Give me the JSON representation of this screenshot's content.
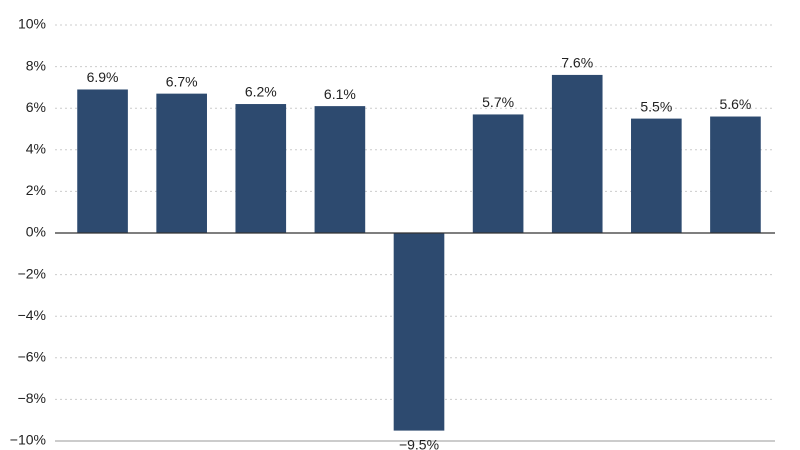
{
  "chart_data": {
    "type": "bar",
    "categories": [
      null,
      null,
      null,
      null,
      null,
      null,
      null,
      null,
      null
    ],
    "values": [
      6.9,
      6.7,
      6.2,
      6.1,
      -9.5,
      5.7,
      7.6,
      5.5,
      5.6
    ],
    "value_labels": [
      "6.9%",
      "6.7%",
      "6.2%",
      "6.1%",
      "−9.5%",
      "5.7%",
      "7.6%",
      "5.5%",
      "5.6%"
    ],
    "color": "#2d4a6f",
    "ylim": [
      -10,
      10
    ],
    "yticks": [
      {
        "value": -10,
        "label": "−10%"
      },
      {
        "value": -8,
        "label": "−8%"
      },
      {
        "value": -6,
        "label": "−6%"
      },
      {
        "value": -4,
        "label": "−4%"
      },
      {
        "value": -2,
        "label": "−2%"
      },
      {
        "value": 0,
        "label": "0%"
      },
      {
        "value": 2,
        "label": "2%"
      },
      {
        "value": 4,
        "label": "4%"
      },
      {
        "value": 6,
        "label": "6%"
      },
      {
        "value": 8,
        "label": "8%"
      },
      {
        "value": 10,
        "label": "10%"
      }
    ],
    "grid": true
  }
}
